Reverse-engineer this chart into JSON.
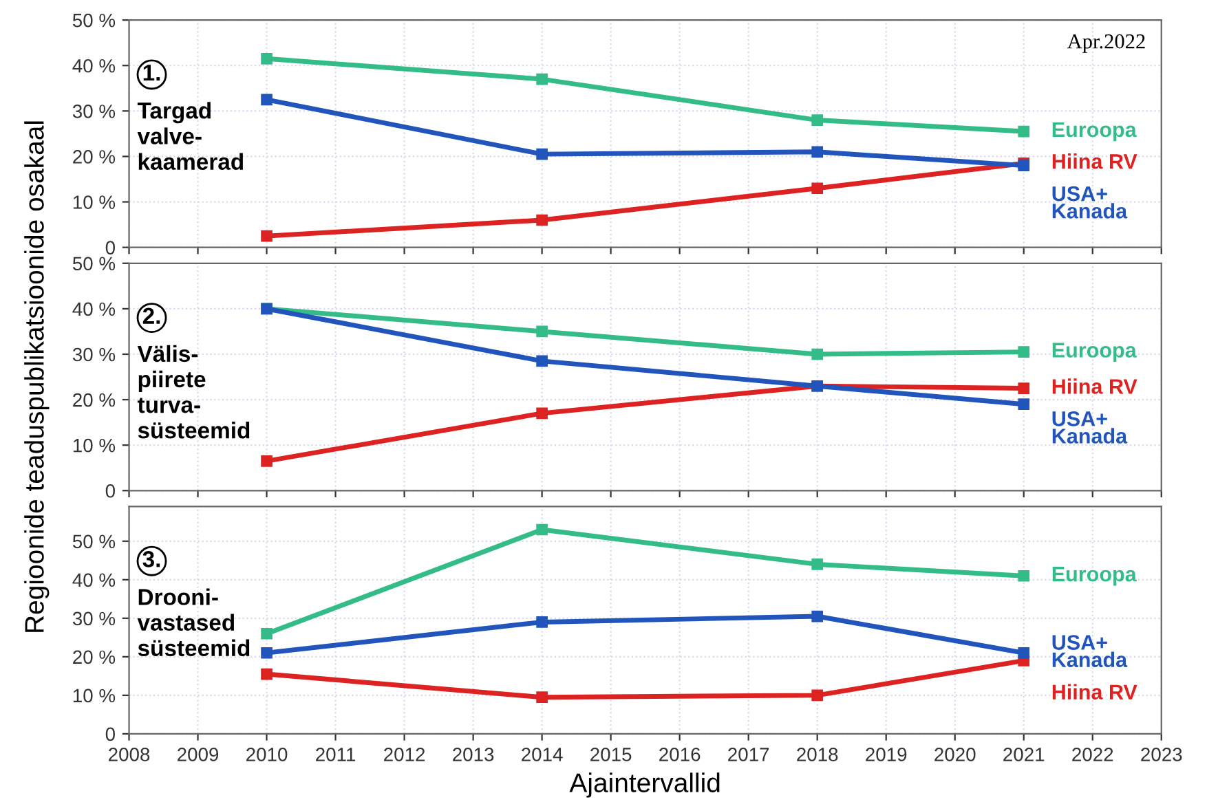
{
  "chart_data": [
    {
      "type": "line",
      "marker": "square",
      "grid": true,
      "tick_labels": "y",
      "x": [
        2010,
        2014,
        2018,
        2021
      ],
      "xlim": [
        2008,
        2023
      ],
      "xticks": [
        2008,
        2009,
        2010,
        2011,
        2012,
        2013,
        2014,
        2015,
        2016,
        2017,
        2018,
        2019,
        2020,
        2021,
        2022,
        2023
      ],
      "ylim": [
        0,
        50
      ],
      "yticks": [
        0,
        {
          "value": 10,
          "label": "10 %"
        },
        {
          "value": 20,
          "label": "20 %"
        },
        {
          "value": 30,
          "label": "30 %"
        },
        {
          "value": 40,
          "label": "40 %"
        },
        {
          "value": 50,
          "label": "50 %"
        }
      ],
      "annotations": [
        "1.",
        "Targad\nvalve-\nkaamerad",
        "Apr.2022"
      ],
      "series": [
        {
          "name": "Euroopa",
          "color": "#33bb88",
          "values": [
            41.5,
            37,
            28,
            25.5
          ]
        },
        {
          "name": "Hiina RV",
          "color": "#dd2222",
          "values": [
            2.5,
            6,
            13,
            18.5
          ]
        },
        {
          "name": "USA+\nKanada",
          "color": "#2255bb",
          "values": [
            32.5,
            20.5,
            21,
            18
          ]
        }
      ]
    },
    {
      "type": "line",
      "marker": "square",
      "grid": true,
      "tick_labels": "y",
      "x": [
        2010,
        2014,
        2018,
        2021
      ],
      "xlim": [
        2008,
        2023
      ],
      "xticks": [
        2008,
        2009,
        2010,
        2011,
        2012,
        2013,
        2014,
        2015,
        2016,
        2017,
        2018,
        2019,
        2020,
        2021,
        2022,
        2023
      ],
      "ylim": [
        0,
        50
      ],
      "yticks": [
        0,
        {
          "value": 10,
          "label": "10 %"
        },
        {
          "value": 20,
          "label": "20 %"
        },
        {
          "value": 30,
          "label": "30 %"
        },
        {
          "value": 40,
          "label": "40 %"
        },
        {
          "value": 50,
          "label": "50 %"
        }
      ],
      "ylabel": "Regioonide teaduspublikatsioonide osakaal",
      "annotations": [
        "2.",
        "Välis-\npiirete\nturva-\nsüsteemid"
      ],
      "series": [
        {
          "name": "Euroopa",
          "color": "#33bb88",
          "values": [
            40,
            35,
            30,
            30.5
          ]
        },
        {
          "name": "Hiina RV",
          "color": "#dd2222",
          "values": [
            6.5,
            17,
            23,
            22.5
          ]
        },
        {
          "name": "USA+\nKanada",
          "color": "#2255bb",
          "values": [
            40,
            28.5,
            23,
            19
          ]
        }
      ]
    },
    {
      "type": "line",
      "marker": "square",
      "grid": true,
      "x": [
        2010,
        2014,
        2018,
        2021
      ],
      "xlim": [
        2008,
        2023
      ],
      "xticks": [
        2008,
        2009,
        2010,
        2011,
        2012,
        2013,
        2014,
        2015,
        2016,
        2017,
        2018,
        2019,
        2020,
        2021,
        2022,
        2023
      ],
      "ylim": [
        0,
        59
      ],
      "yticks": [
        0,
        {
          "value": 10,
          "label": "10 %"
        },
        {
          "value": 20,
          "label": "20 %"
        },
        {
          "value": 30,
          "label": "30 %"
        },
        {
          "value": 40,
          "label": "40 %"
        },
        {
          "value": 50,
          "label": "50 %"
        }
      ],
      "xlabel": "Ajaintervallid",
      "annotations": [
        "3.",
        "Drooni-\nvastased\nsüsteemid"
      ],
      "series": [
        {
          "name": "Euroopa",
          "color": "#33bb88",
          "values": [
            26,
            53,
            44,
            41
          ]
        },
        {
          "name": "Hiina RV",
          "color": "#dd2222",
          "values": [
            15.5,
            9.5,
            10,
            19
          ]
        },
        {
          "name": "USA+\nKanada",
          "color": "#2255bb",
          "values": [
            21,
            29,
            30.5,
            21
          ]
        }
      ]
    }
  ]
}
